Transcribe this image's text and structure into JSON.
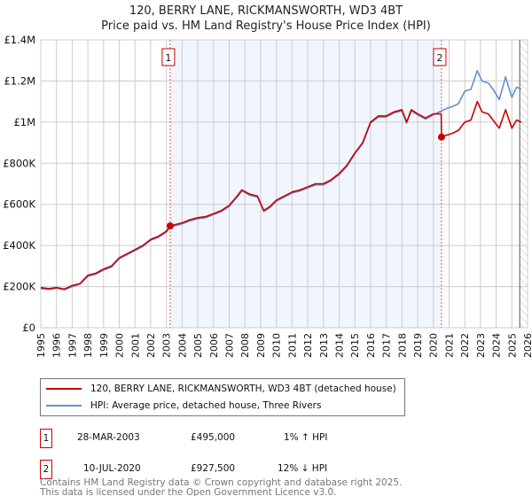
{
  "chart_data": {
    "type": "line",
    "title": "120, BERRY LANE, RICKMANSWORTH, WD3 4BT",
    "subtitle": "Price paid vs. HM Land Registry's House Price Index (HPI)",
    "xlabel": "",
    "ylabel": "",
    "xlim": [
      1995,
      2026
    ],
    "ylim": [
      0,
      1400000
    ],
    "grid": true,
    "y_ticks": [
      {
        "v": 0,
        "label": "£0"
      },
      {
        "v": 200000,
        "label": "£200K"
      },
      {
        "v": 400000,
        "label": "£400K"
      },
      {
        "v": 600000,
        "label": "£600K"
      },
      {
        "v": 800000,
        "label": "£800K"
      },
      {
        "v": 1000000,
        "label": "£1M"
      },
      {
        "v": 1200000,
        "label": "£1.2M"
      },
      {
        "v": 1400000,
        "label": "£1.4M"
      }
    ],
    "x_ticks": [
      "1995",
      "1996",
      "1997",
      "1998",
      "1999",
      "2000",
      "2001",
      "2002",
      "2003",
      "2004",
      "2005",
      "2006",
      "2007",
      "2008",
      "2009",
      "2010",
      "2011",
      "2012",
      "2013",
      "2014",
      "2015",
      "2016",
      "2017",
      "2018",
      "2019",
      "2020",
      "2021",
      "2022",
      "2023",
      "2024",
      "2025",
      "2026"
    ],
    "shaded_range": [
      2003.24,
      2020.52
    ],
    "hatched_from": 2025.5,
    "series": [
      {
        "name": "120, BERRY LANE, RICKMANSWORTH, WD3 4BT (detached house)",
        "color": "#cc0000",
        "x": [
          1995,
          1995.5,
          1996,
          1996.5,
          1997,
          1997.5,
          1998,
          1998.5,
          1999,
          1999.5,
          2000,
          2000.5,
          2001,
          2001.5,
          2002,
          2002.5,
          2003,
          2003.24,
          2003.5,
          2004,
          2004.5,
          2005,
          2005.5,
          2006,
          2006.5,
          2007,
          2007.5,
          2007.8,
          2008.3,
          2008.8,
          2009.2,
          2009.6,
          2010,
          2010.5,
          2011,
          2011.5,
          2012,
          2012.5,
          2013,
          2013.5,
          2014,
          2014.5,
          2015,
          2015.5,
          2016,
          2016.5,
          2017,
          2017.5,
          2018,
          2018.3,
          2018.6,
          2019,
          2019.5,
          2020,
          2020.5,
          2020.52,
          2020.8,
          2021.2,
          2021.6,
          2022,
          2022.4,
          2022.8,
          2023.1,
          2023.5,
          2023.8,
          2024.2,
          2024.6,
          2025,
          2025.3,
          2025.6
        ],
        "y": [
          195000,
          190000,
          195000,
          188000,
          205000,
          215000,
          255000,
          265000,
          285000,
          300000,
          340000,
          360000,
          380000,
          400000,
          430000,
          445000,
          470000,
          495000,
          500000,
          510000,
          525000,
          535000,
          540000,
          555000,
          570000,
          595000,
          640000,
          670000,
          650000,
          640000,
          570000,
          590000,
          620000,
          640000,
          660000,
          670000,
          685000,
          700000,
          700000,
          720000,
          750000,
          790000,
          850000,
          900000,
          1000000,
          1030000,
          1030000,
          1050000,
          1060000,
          1000000,
          1060000,
          1040000,
          1020000,
          1040000,
          1040000,
          927500,
          935000,
          945000,
          960000,
          1000000,
          1010000,
          1100000,
          1050000,
          1040000,
          1010000,
          970000,
          1060000,
          970000,
          1010000,
          1000000
        ]
      },
      {
        "name": "HPI: Average price, detached house, Three Rivers",
        "color": "#6090d0",
        "x": [
          1995,
          1995.5,
          1996,
          1996.5,
          1997,
          1997.5,
          1998,
          1998.5,
          1999,
          1999.5,
          2000,
          2000.5,
          2001,
          2001.5,
          2002,
          2002.5,
          2003,
          2003.24,
          2003.5,
          2004,
          2004.5,
          2005,
          2005.5,
          2006,
          2006.5,
          2007,
          2007.5,
          2007.8,
          2008.3,
          2008.8,
          2009.2,
          2009.6,
          2010,
          2010.5,
          2011,
          2011.5,
          2012,
          2012.5,
          2013,
          2013.5,
          2014,
          2014.5,
          2015,
          2015.5,
          2016,
          2016.5,
          2017,
          2017.5,
          2018,
          2018.3,
          2018.6,
          2019,
          2019.5,
          2020,
          2020.52,
          2020.8,
          2021.2,
          2021.6,
          2022,
          2022.4,
          2022.8,
          2023.1,
          2023.5,
          2023.8,
          2024.2,
          2024.6,
          2025,
          2025.3,
          2025.6
        ],
        "y": [
          190000,
          186000,
          192000,
          185000,
          200000,
          212000,
          250000,
          260000,
          280000,
          295000,
          335000,
          355000,
          375000,
          395000,
          425000,
          440000,
          465000,
          490000,
          495000,
          505000,
          520000,
          530000,
          535000,
          550000,
          565000,
          590000,
          635000,
          665000,
          645000,
          635000,
          565000,
          585000,
          615000,
          635000,
          655000,
          665000,
          680000,
          695000,
          695000,
          715000,
          745000,
          785000,
          845000,
          895000,
          995000,
          1025000,
          1025000,
          1045000,
          1055000,
          995000,
          1055000,
          1035000,
          1015000,
          1035000,
          1055000,
          1065000,
          1075000,
          1090000,
          1150000,
          1160000,
          1250000,
          1200000,
          1190000,
          1160000,
          1110000,
          1220000,
          1120000,
          1170000,
          1160000
        ]
      }
    ],
    "sales": [
      {
        "id": "1",
        "x": 2003.24,
        "y": 495000,
        "date": "28-MAR-2003",
        "price": "£495,000",
        "hpi": "1% ↑ HPI"
      },
      {
        "id": "2",
        "x": 2020.52,
        "y": 927500,
        "date": "10-JUL-2020",
        "price": "£927,500",
        "hpi": "12% ↓ HPI"
      }
    ]
  },
  "footer": {
    "line1": "Contains HM Land Registry data © Crown copyright and database right 2025.",
    "line2": "This data is licensed under the Open Government Licence v3.0."
  }
}
